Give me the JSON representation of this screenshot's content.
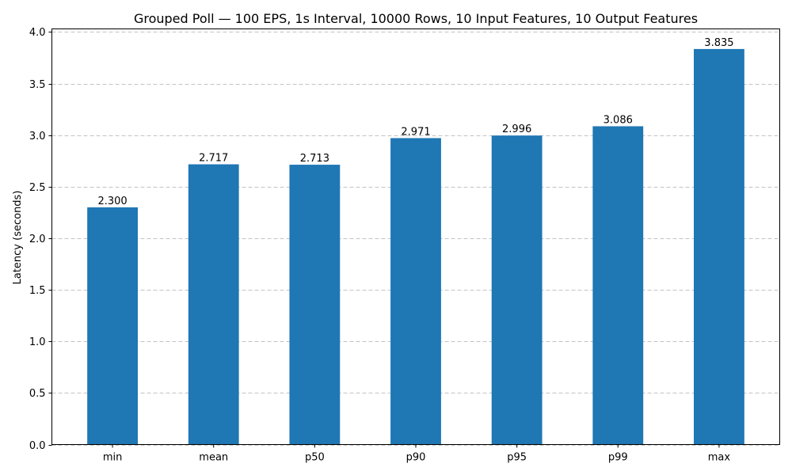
{
  "chart_data": {
    "type": "bar",
    "title": "Grouped Poll — 100 EPS, 1s Interval, 10000 Rows, 10 Input Features, 10 Output Features",
    "xlabel": "",
    "ylabel": "Latency (seconds)",
    "categories": [
      "min",
      "mean",
      "p50",
      "p90",
      "p95",
      "p99",
      "max"
    ],
    "values": [
      2.3,
      2.717,
      2.713,
      2.971,
      2.996,
      3.086,
      3.835
    ],
    "value_labels": [
      "2.300",
      "2.717",
      "2.713",
      "2.971",
      "2.996",
      "3.086",
      "3.835"
    ],
    "ylim": [
      0,
      4.03
    ],
    "yticks": [
      0.0,
      0.5,
      1.0,
      1.5,
      2.0,
      2.5,
      3.0,
      3.5,
      4.0
    ],
    "ytick_labels": [
      "0.0",
      "0.5",
      "1.0",
      "1.5",
      "2.0",
      "2.5",
      "3.0",
      "3.5",
      "4.0"
    ],
    "grid": "y",
    "bar_color": "#1f77b4"
  }
}
